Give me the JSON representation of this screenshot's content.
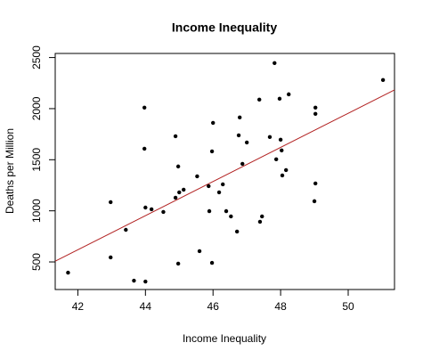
{
  "chart_data": {
    "type": "scatter",
    "title": "Income Inequality",
    "x_label": "Income Inequality",
    "y_label": "Deaths per Million",
    "xlim": [
      41.33,
      51.37
    ],
    "xticks": [
      42,
      44,
      46,
      48,
      50
    ],
    "ylim": [
      230,
      2540
    ],
    "yticks": [
      500,
      1000,
      1500,
      2000,
      2500
    ],
    "color": "#000000",
    "x": [
      41.71,
      42.97,
      42.97,
      43.42,
      43.66,
      43.97,
      44,
      43.97,
      44,
      44.18,
      44.53,
      44.89,
      44.97,
      44.89,
      45,
      45.13,
      44.97,
      45.53,
      45.6,
      45.87,
      45.89,
      46,
      45.97,
      45.97,
      46.18,
      46.29,
      46.39,
      46.53,
      46.71,
      46.76,
      46.79,
      46.87,
      47,
      47.37,
      47.39,
      47.45,
      47.68,
      47.82,
      47.87,
      47.97,
      48,
      48.03,
      48.05,
      48.16,
      48.24,
      49.03,
      49.03,
      49.03,
      49,
      51.03
    ],
    "values": [
      395,
      1085,
      544,
      814,
      317,
      2010,
      308,
      1608,
      1032,
      1015,
      989,
      1730,
      1434,
      1128,
      1181,
      1207,
      483,
      1338,
      605,
      1242,
      997,
      1861,
      1582,
      491,
      1181,
      1259,
      997,
      945,
      797,
      1739,
      1914,
      1460,
      1669,
      2088,
      893,
      945,
      1722,
      2446,
      1504,
      2097,
      1696,
      1591,
      1346,
      1399,
      2140,
      2010,
      1949,
      1268,
      1094,
      2280
    ],
    "trend_line": {
      "x": [
        41.33,
        51.37
      ],
      "values": [
        507,
        2183
      ],
      "color": "#b22222"
    }
  }
}
